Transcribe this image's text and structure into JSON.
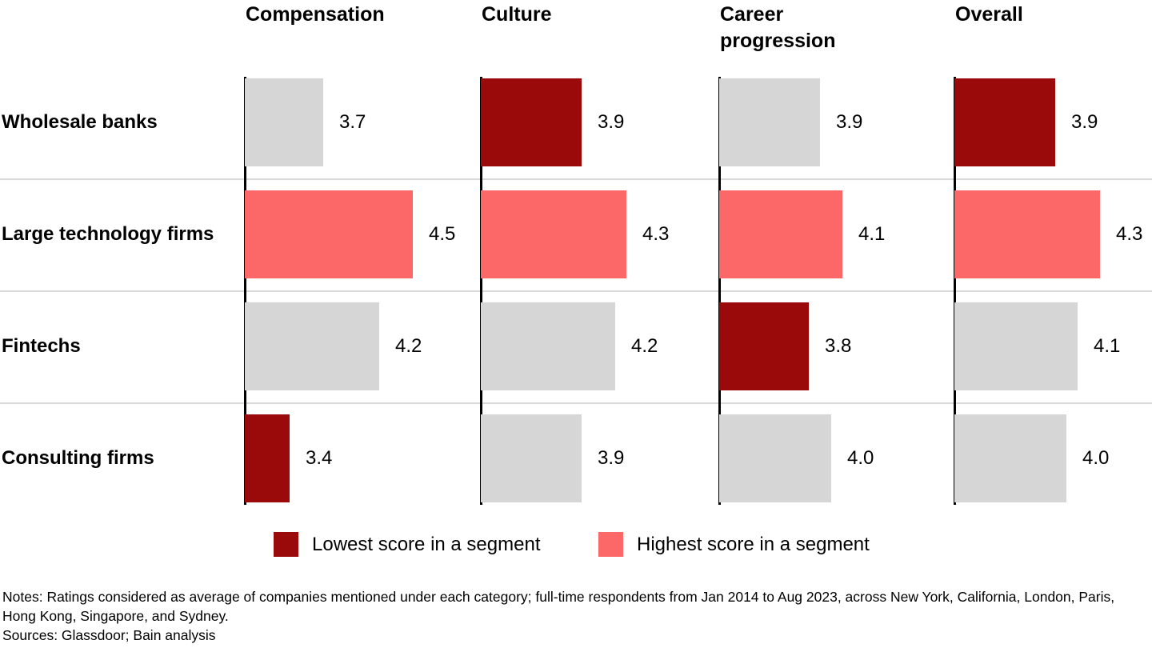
{
  "chart_data": {
    "type": "bar",
    "orientation": "horizontal",
    "title": "",
    "columns": [
      "Compensation",
      "Culture",
      "Career progression",
      "Overall"
    ],
    "rows": [
      "Wholesale banks",
      "Large technology firms",
      "Fintechs",
      "Consulting firms"
    ],
    "series": [
      {
        "name": "Wholesale banks",
        "values": [
          3.7,
          3.9,
          3.9,
          3.9
        ],
        "emphasis": [
          "neutral",
          "lowest",
          "neutral",
          "lowest"
        ]
      },
      {
        "name": "Large technology firms",
        "values": [
          4.5,
          4.3,
          4.1,
          4.3
        ],
        "emphasis": [
          "highest",
          "highest",
          "highest",
          "highest"
        ]
      },
      {
        "name": "Fintechs",
        "values": [
          4.2,
          4.2,
          3.8,
          4.1
        ],
        "emphasis": [
          "neutral",
          "neutral",
          "lowest",
          "neutral"
        ]
      },
      {
        "name": "Consulting firms",
        "values": [
          3.4,
          3.9,
          4.0,
          4.0
        ],
        "emphasis": [
          "lowest",
          "neutral",
          "neutral",
          "neutral"
        ]
      }
    ],
    "value_decimals": 1,
    "axis_baseline_value": 3.0,
    "value_range": [
      3.0,
      4.6
    ],
    "grid": "row-separators-only",
    "legend_position": "bottom",
    "legend": [
      {
        "key": "lowest",
        "label": "Lowest score in a segment",
        "color": "#9B0A0A"
      },
      {
        "key": "highest",
        "label": "Highest score in a segment",
        "color": "#FC6868"
      }
    ],
    "colors": {
      "lowest": "#9B0A0A",
      "highest": "#FC6868",
      "neutral": "#D6D6D6",
      "axis": "#000000",
      "separator": "#D9D9D9"
    }
  },
  "footer": {
    "notes": "Notes: Ratings considered as average of companies mentioned under each category; full-time respondents from Jan 2014 to Aug 2023, across New York, California, London, Paris, Hong Kong, Singapore, and Sydney.",
    "sources": "Sources: Glassdoor; Bain analysis"
  }
}
